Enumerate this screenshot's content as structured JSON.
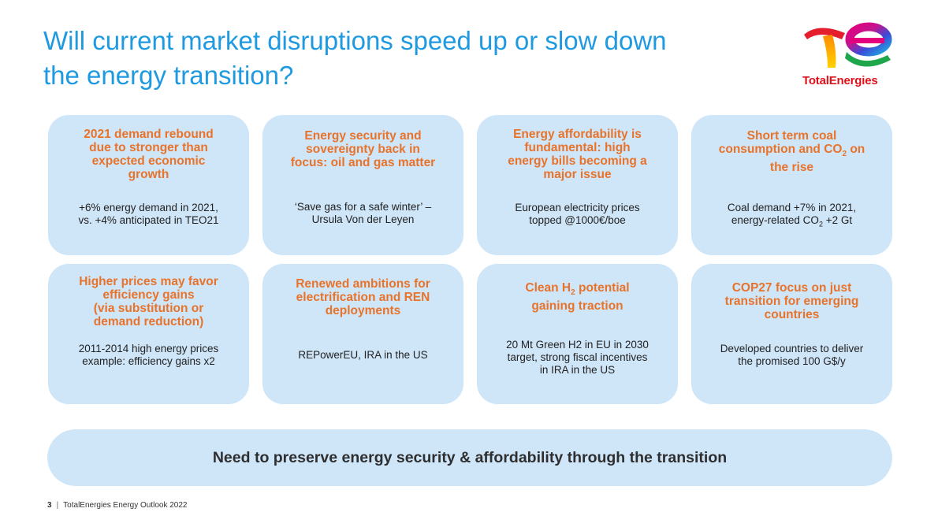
{
  "slide": {
    "title_line1": "Will current market disruptions speed up or slow down",
    "title_line2": "the energy transition?"
  },
  "logo": {
    "text": "TotalEnergies"
  },
  "cards": [
    {
      "title_lines": [
        "2021 demand rebound",
        "due to stronger than",
        "expected economic",
        "growth"
      ],
      "body_lines": [
        "+6% energy demand in 2021,",
        "vs. +4% anticipated in TEO21"
      ]
    },
    {
      "title_lines": [
        "Energy security and",
        "sovereignty back in",
        "focus: oil and gas matter"
      ],
      "body_lines": [
        "‘Save gas for a safe winter’ –",
        "Ursula Von der Leyen"
      ]
    },
    {
      "title_lines": [
        "Energy affordability is",
        "fundamental: high",
        "energy bills becoming a",
        "major issue"
      ],
      "body_lines": [
        "European electricity prices",
        "topped @1000€/boe"
      ]
    },
    {
      "title_lines": [
        "Short term coal",
        "consumption and CO",
        "2",
        " on",
        "the rise"
      ],
      "body_lines": [
        "Coal demand +7% in 2021,",
        "energy-related CO",
        "2",
        " +2 Gt"
      ]
    },
    {
      "title_lines": [
        "Higher prices may favor",
        "efficiency gains",
        "(via substitution or",
        "demand reduction)"
      ],
      "body_lines": [
        "2011-2014 high energy prices",
        "example: efficiency gains x2"
      ]
    },
    {
      "title_lines": [
        "Renewed ambitions for",
        "electrification and REN",
        "deployments"
      ],
      "body_lines": [
        "REPowerEU, IRA in the US"
      ]
    },
    {
      "title_lines": [
        "Clean H",
        "2",
        " potential",
        "gaining traction"
      ],
      "body_lines": [
        "20 Mt Green H2 in EU in 2030",
        "target, strong fiscal incentives",
        "in IRA in the US"
      ]
    },
    {
      "title_lines": [
        "COP27 focus on just",
        "transition for emerging",
        "countries"
      ],
      "body_lines": [
        "Developed countries to deliver",
        "the promised 100 G$/y"
      ]
    }
  ],
  "banner": {
    "text": "Need to preserve energy security & affordability through the transition"
  },
  "footer": {
    "page_number": "3",
    "separator": "|",
    "source": "TotalEnergies Energy Outlook 2022"
  },
  "colors": {
    "title_blue": "#1f9ae0",
    "card_bg": "#cfe5f8",
    "accent_orange": "#e8732a",
    "logo_red": "#e0101a"
  }
}
